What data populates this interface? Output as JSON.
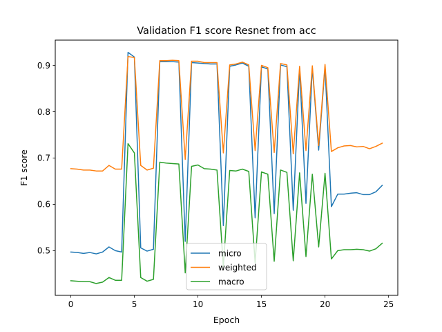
{
  "chart_data": {
    "type": "line",
    "title": "Validation F1 score Resnet from acc",
    "xlabel": "Epoch",
    "ylabel": "F1 score",
    "xlim": [
      -1.225,
      25.725
    ],
    "ylim": [
      0.4035,
      0.9545
    ],
    "xticks": [
      0,
      5,
      10,
      15,
      20,
      25
    ],
    "yticks": [
      0.5,
      0.6,
      0.7,
      0.8,
      0.9
    ],
    "xtick_labels": [
      "0",
      "5",
      "10",
      "15",
      "20",
      "25"
    ],
    "ytick_labels": [
      "0.5",
      "0.6",
      "0.7",
      "0.8",
      "0.9"
    ],
    "legend_position": "lower center",
    "grid": false,
    "x": [
      0,
      0.5,
      1,
      1.5,
      2,
      2.5,
      3,
      3.5,
      4,
      4.5,
      5,
      5.5,
      6,
      6.5,
      7,
      7.5,
      8,
      8.5,
      9,
      9.5,
      10,
      10.5,
      11,
      11.5,
      12,
      12.5,
      13,
      13.5,
      14,
      14.5,
      15,
      15.5,
      16,
      16.5,
      17,
      17.5,
      18,
      18.5,
      19,
      19.5,
      20,
      20.5,
      21,
      21.5,
      22,
      22.5,
      23,
      23.5,
      24,
      24.5
    ],
    "series": [
      {
        "name": "micro",
        "color": "#1f77b4",
        "values": [
          0.497,
          0.496,
          0.494,
          0.496,
          0.493,
          0.497,
          0.508,
          0.5,
          0.497,
          0.928,
          0.918,
          0.506,
          0.499,
          0.503,
          0.908,
          0.908,
          0.908,
          0.907,
          0.52,
          0.906,
          0.905,
          0.904,
          0.903,
          0.903,
          0.554,
          0.898,
          0.901,
          0.905,
          0.898,
          0.571,
          0.897,
          0.892,
          0.58,
          0.901,
          0.897,
          0.587,
          0.894,
          0.602,
          0.895,
          0.717,
          0.897,
          0.595,
          0.622,
          0.622,
          0.624,
          0.625,
          0.621,
          0.621,
          0.627,
          0.641
        ]
      },
      {
        "name": "weighted",
        "color": "#ff7f0e",
        "values": [
          0.677,
          0.676,
          0.674,
          0.674,
          0.672,
          0.672,
          0.684,
          0.676,
          0.676,
          0.919,
          0.917,
          0.684,
          0.674,
          0.678,
          0.91,
          0.91,
          0.911,
          0.91,
          0.697,
          0.909,
          0.909,
          0.906,
          0.906,
          0.906,
          0.711,
          0.901,
          0.903,
          0.907,
          0.901,
          0.716,
          0.9,
          0.895,
          0.712,
          0.904,
          0.901,
          0.709,
          0.898,
          0.716,
          0.899,
          0.727,
          0.902,
          0.714,
          0.722,
          0.726,
          0.727,
          0.724,
          0.725,
          0.72,
          0.725,
          0.732
        ]
      },
      {
        "name": "macro",
        "color": "#2ca02c",
        "values": [
          0.435,
          0.434,
          0.433,
          0.433,
          0.429,
          0.432,
          0.442,
          0.436,
          0.436,
          0.731,
          0.711,
          0.442,
          0.434,
          0.438,
          0.691,
          0.689,
          0.688,
          0.687,
          0.452,
          0.682,
          0.685,
          0.677,
          0.676,
          0.674,
          0.465,
          0.673,
          0.672,
          0.676,
          0.671,
          0.474,
          0.67,
          0.665,
          0.477,
          0.674,
          0.669,
          0.478,
          0.668,
          0.487,
          0.665,
          0.508,
          0.667,
          0.482,
          0.5,
          0.502,
          0.502,
          0.503,
          0.502,
          0.499,
          0.504,
          0.516
        ]
      }
    ]
  }
}
